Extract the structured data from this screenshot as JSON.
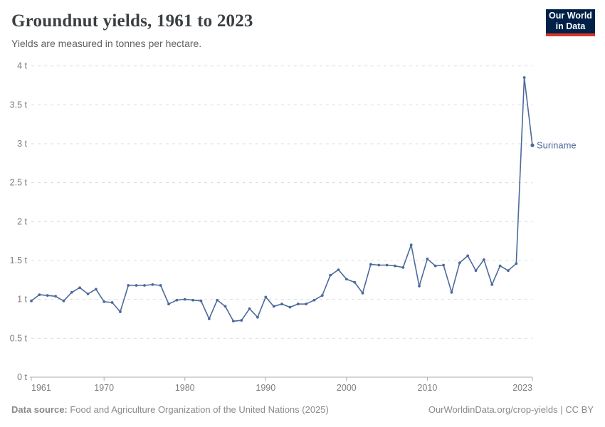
{
  "header": {
    "title": "Groundnut yields, 1961 to 2023",
    "subtitle": "Yields are measured in tonnes per hectare.",
    "logo_line1": "Our World",
    "logo_line2": "in Data"
  },
  "footer": {
    "source_label": "Data source:",
    "source_text": " Food and Agriculture Organization of the United Nations (2025)",
    "credit": "OurWorldinData.org/crop-yields | CC BY"
  },
  "colors": {
    "series": "#4C6A9C",
    "gridline": "#dcdcdc",
    "axis": "#adadad",
    "tick_text": "#7d7d7d",
    "logo_bg": "#002147",
    "logo_stripe": "#dc3426"
  },
  "chart_data": {
    "type": "line",
    "title": "Groundnut yields, 1961 to 2023",
    "ylabel": "tonnes per hectare",
    "x_min": 1961,
    "x_max": 2023,
    "ylim": [
      0,
      4
    ],
    "grid": "horizontal-dashed",
    "legend_position": "end-of-line-label",
    "xticks": [
      {
        "v": 1961,
        "label": "1961"
      },
      {
        "v": 1970,
        "label": "1970"
      },
      {
        "v": 1980,
        "label": "1980"
      },
      {
        "v": 1990,
        "label": "1990"
      },
      {
        "v": 2000,
        "label": "2000"
      },
      {
        "v": 2010,
        "label": "2010"
      },
      {
        "v": 2023,
        "label": "2023"
      }
    ],
    "yticks": [
      {
        "v": 0,
        "label": "0 t"
      },
      {
        "v": 0.5,
        "label": "0.5 t"
      },
      {
        "v": 1,
        "label": "1 t"
      },
      {
        "v": 1.5,
        "label": "1.5 t"
      },
      {
        "v": 2,
        "label": "2 t"
      },
      {
        "v": 2.5,
        "label": "2.5 t"
      },
      {
        "v": 3,
        "label": "3 t"
      },
      {
        "v": 3.5,
        "label": "3.5 t"
      },
      {
        "v": 4,
        "label": "4 t"
      }
    ],
    "series": [
      {
        "name": "Suriname",
        "label": "Suriname",
        "color": "#4C6A9C",
        "years": [
          1961,
          1962,
          1963,
          1964,
          1965,
          1966,
          1967,
          1968,
          1969,
          1970,
          1971,
          1972,
          1973,
          1974,
          1975,
          1976,
          1977,
          1978,
          1979,
          1980,
          1981,
          1982,
          1983,
          1984,
          1985,
          1986,
          1987,
          1988,
          1989,
          1990,
          1991,
          1992,
          1993,
          1994,
          1995,
          1996,
          1997,
          1998,
          1999,
          2000,
          2001,
          2002,
          2003,
          2004,
          2005,
          2006,
          2007,
          2008,
          2009,
          2010,
          2011,
          2012,
          2013,
          2014,
          2015,
          2016,
          2017,
          2018,
          2019,
          2020,
          2021,
          2022,
          2023
        ],
        "values": [
          0.98,
          1.06,
          1.05,
          1.04,
          0.98,
          1.09,
          1.15,
          1.07,
          1.13,
          0.97,
          0.96,
          0.84,
          1.18,
          1.18,
          1.18,
          1.19,
          1.18,
          0.94,
          0.99,
          1.0,
          0.99,
          0.98,
          0.75,
          0.99,
          0.91,
          0.72,
          0.73,
          0.88,
          0.77,
          1.03,
          0.91,
          0.94,
          0.9,
          0.94,
          0.94,
          0.99,
          1.05,
          1.31,
          1.38,
          1.26,
          1.22,
          1.08,
          1.45,
          1.44,
          1.44,
          1.43,
          1.41,
          1.7,
          1.17,
          1.52,
          1.43,
          1.44,
          1.09,
          1.47,
          1.56,
          1.37,
          1.51,
          1.19,
          1.43,
          1.37,
          1.46,
          3.85,
          2.98
        ]
      }
    ]
  }
}
